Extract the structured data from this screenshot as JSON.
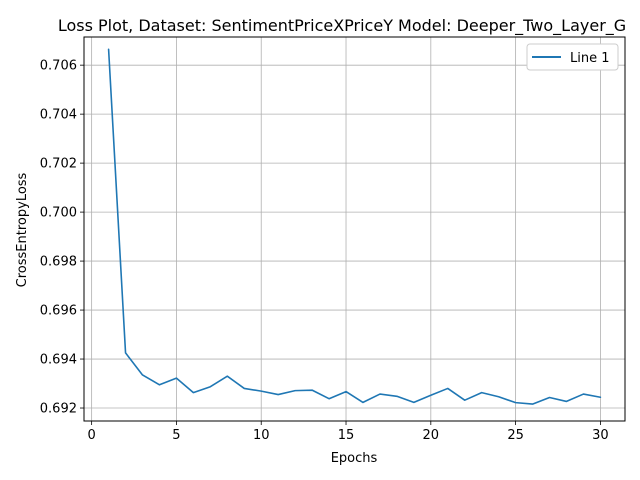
{
  "chart_data": {
    "type": "line",
    "title": "Loss Plot, Dataset: SentimentPriceXPriceY Model: Deeper_Two_Layer_G",
    "xlabel": "Epochs",
    "ylabel": "CrossEntropyLoss",
    "xlim": [
      -0.45,
      31.45
    ],
    "ylim": [
      0.69147,
      0.70715
    ],
    "xticks": [
      0,
      5,
      10,
      15,
      20,
      25,
      30
    ],
    "xtick_labels": [
      "0",
      "5",
      "10",
      "15",
      "20",
      "25",
      "30"
    ],
    "yticks": [
      0.692,
      0.694,
      0.696,
      0.698,
      0.7,
      0.702,
      0.704,
      0.706
    ],
    "ytick_labels": [
      "0.692",
      "0.694",
      "0.696",
      "0.698",
      "0.700",
      "0.702",
      "0.704",
      "0.706"
    ],
    "grid": true,
    "legend_position": "top-right",
    "series": [
      {
        "name": "Line 1",
        "color": "#1f77b4",
        "x": [
          1,
          2,
          3,
          4,
          5,
          6,
          7,
          8,
          9,
          10,
          11,
          12,
          13,
          14,
          15,
          16,
          17,
          18,
          19,
          20,
          21,
          22,
          23,
          24,
          25,
          26,
          27,
          28,
          29,
          30
        ],
        "y": [
          0.70665,
          0.69425,
          0.69335,
          0.69295,
          0.69322,
          0.69263,
          0.69287,
          0.6933,
          0.6928,
          0.69269,
          0.69255,
          0.69271,
          0.69273,
          0.69238,
          0.69267,
          0.69223,
          0.69257,
          0.69248,
          0.69223,
          0.69252,
          0.6928,
          0.69232,
          0.69263,
          0.69246,
          0.69222,
          0.69216,
          0.69243,
          0.69227,
          0.69257,
          0.69244
        ]
      }
    ]
  }
}
